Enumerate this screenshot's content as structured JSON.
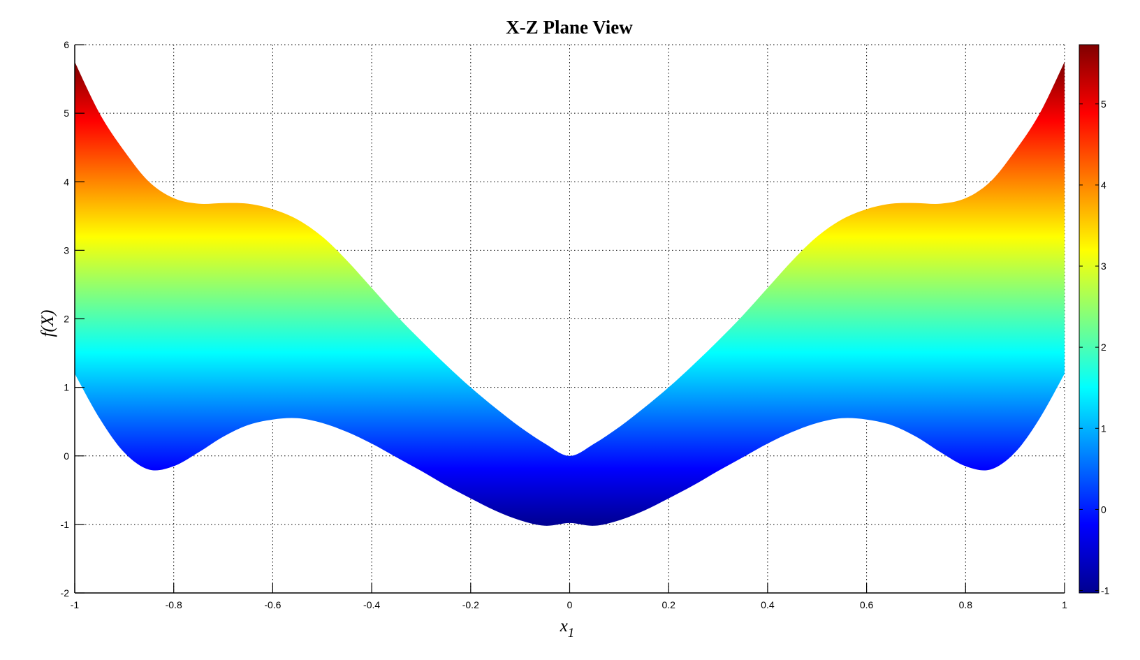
{
  "chart_data": {
    "type": "area",
    "title": "X-Z Plane View",
    "xlabel": "x",
    "xlabel_subscript": "1",
    "ylabel": "f(X)",
    "xlim": [
      -1,
      1
    ],
    "ylim": [
      -2,
      6
    ],
    "xticks": [
      "-1",
      "-0.8",
      "-0.6",
      "-0.4",
      "-0.2",
      "0",
      "0.2",
      "0.4",
      "0.6",
      "0.8",
      "1"
    ],
    "yticks": [
      "-2",
      "-1",
      "0",
      "1",
      "2",
      "3",
      "4",
      "5",
      "6"
    ],
    "grid": true,
    "colormap": "jet",
    "colormap_colors": [
      "#00008F",
      "#0000FF",
      "#00FFFF",
      "#FFFF00",
      "#FF0000",
      "#800000"
    ],
    "colorbar": {
      "placement": "right",
      "clim": [
        -1.03,
        5.73
      ],
      "ticks": [
        "-1",
        "0",
        "1",
        "2",
        "3",
        "4",
        "5"
      ]
    },
    "x": [
      -1,
      -0.95,
      -0.9,
      -0.85,
      -0.8,
      -0.75,
      -0.7,
      -0.65,
      -0.6,
      -0.55,
      -0.5,
      -0.45,
      -0.4,
      -0.35,
      -0.3,
      -0.25,
      -0.2,
      -0.15,
      -0.1,
      -0.05,
      0,
      0.05,
      0.1,
      0.15,
      0.2,
      0.25,
      0.3,
      0.35,
      0.4,
      0.45,
      0.5,
      0.55,
      0.6,
      0.65,
      0.7,
      0.75,
      0.8,
      0.85,
      0.9,
      0.95,
      1
    ],
    "upper": [
      5.75,
      5.0,
      4.45,
      4.0,
      3.76,
      3.68,
      3.69,
      3.68,
      3.6,
      3.45,
      3.2,
      2.85,
      2.45,
      2.05,
      1.68,
      1.33,
      1.0,
      0.7,
      0.42,
      0.18,
      0,
      0.18,
      0.42,
      0.7,
      1.0,
      1.33,
      1.68,
      2.05,
      2.45,
      2.85,
      3.2,
      3.45,
      3.6,
      3.68,
      3.69,
      3.68,
      3.76,
      4.0,
      4.45,
      5.0,
      5.75
    ],
    "lower": [
      1.2,
      0.55,
      0.05,
      -0.2,
      -0.15,
      0.05,
      0.28,
      0.45,
      0.53,
      0.55,
      0.48,
      0.35,
      0.18,
      -0.02,
      -0.22,
      -0.43,
      -0.62,
      -0.8,
      -0.94,
      -1.02,
      -0.98,
      -1.02,
      -0.94,
      -0.8,
      -0.62,
      -0.43,
      -0.22,
      -0.02,
      0.18,
      0.35,
      0.48,
      0.55,
      0.53,
      0.45,
      0.28,
      0.05,
      -0.15,
      -0.2,
      0.05,
      0.55,
      1.2
    ]
  }
}
